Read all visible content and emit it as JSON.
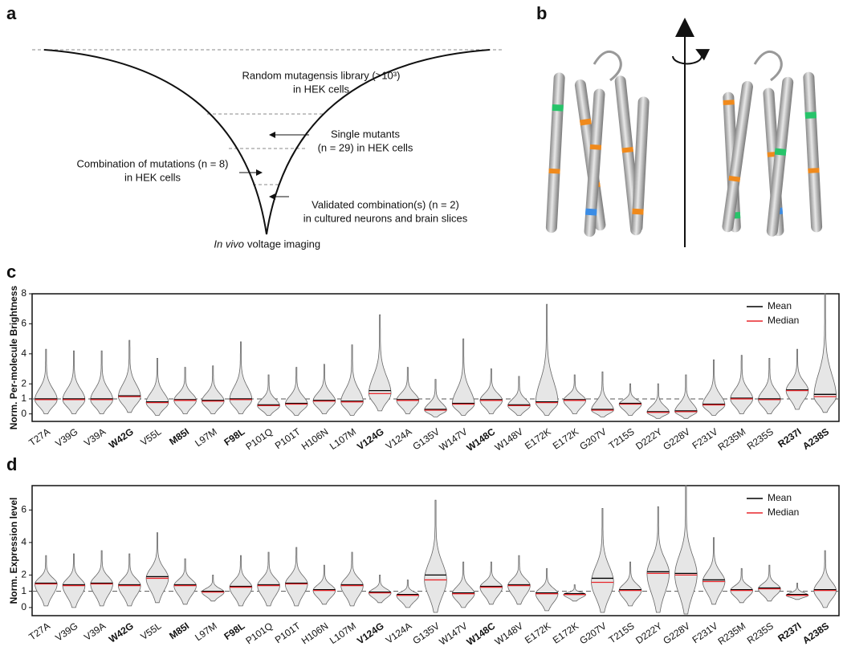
{
  "panel_labels": [
    "a",
    "b",
    "c",
    "d"
  ],
  "funnel": {
    "library": [
      "Random mutagensis library (>10³)",
      "in HEK cells"
    ],
    "single": [
      "Single mutants",
      "(n = 29) in HEK cells"
    ],
    "combination": [
      "Combination of mutations (n = 8)",
      "in HEK cells"
    ],
    "validated": [
      "Validated combination(s) (n = 2)",
      "in cultured neurons and brain slices"
    ],
    "in_vivo": [
      "In vivo",
      "voltage imaging"
    ]
  },
  "chart_data": [
    {
      "type": "violin",
      "ylabel": "Norm. Per-molecule Brightness",
      "categories": [
        "T27A",
        "V39G",
        "V39A",
        "W42G",
        "V55L",
        "M85I",
        "L97M",
        "F98L",
        "P101Q",
        "P101T",
        "H106N",
        "L107M",
        "V124G",
        "V124A",
        "G135V",
        "W147V",
        "W148C",
        "W148V",
        "E172K",
        "E172K",
        "G207V",
        "T215S",
        "D222Y",
        "G228V",
        "F231V",
        "R235M",
        "R235S",
        "R237I",
        "A238S"
      ],
      "bold": [
        false,
        false,
        false,
        true,
        false,
        true,
        false,
        true,
        false,
        false,
        false,
        false,
        true,
        false,
        false,
        false,
        true,
        false,
        false,
        false,
        false,
        false,
        false,
        false,
        false,
        false,
        false,
        true,
        true
      ],
      "series": [
        {
          "name": "Mean",
          "color": "#000000",
          "values": [
            1.0,
            1.0,
            1.0,
            1.2,
            0.8,
            0.95,
            0.9,
            1.0,
            0.6,
            0.7,
            0.9,
            0.85,
            1.55,
            0.95,
            0.3,
            0.7,
            0.95,
            0.6,
            0.8,
            0.95,
            0.3,
            0.7,
            0.15,
            0.2,
            0.65,
            1.05,
            1.0,
            1.6,
            1.3
          ]
        },
        {
          "name": "Median",
          "color": "#e8262b",
          "values": [
            0.95,
            0.95,
            0.95,
            1.15,
            0.75,
            0.9,
            0.85,
            0.95,
            0.55,
            0.65,
            0.85,
            0.8,
            1.35,
            0.9,
            0.25,
            0.65,
            0.9,
            0.55,
            0.75,
            0.9,
            0.25,
            0.65,
            0.1,
            0.15,
            0.6,
            1.0,
            0.95,
            1.55,
            1.15
          ]
        }
      ],
      "min": [
        0.0,
        0.0,
        0.0,
        0.1,
        -0.1,
        0.0,
        0.0,
        0.0,
        -0.1,
        -0.1,
        0.0,
        -0.1,
        0.2,
        0.0,
        -0.2,
        -0.1,
        0.0,
        -0.1,
        -0.1,
        0.0,
        -0.2,
        -0.1,
        -0.3,
        -0.3,
        -0.1,
        0.0,
        0.0,
        0.3,
        0.1
      ],
      "max": [
        4.3,
        4.2,
        4.2,
        4.9,
        3.7,
        3.1,
        3.2,
        4.8,
        2.6,
        3.1,
        3.3,
        4.6,
        6.6,
        3.1,
        2.3,
        5.0,
        3.0,
        2.5,
        7.3,
        2.6,
        2.8,
        2.0,
        2.0,
        2.6,
        3.6,
        3.9,
        3.7,
        4.3,
        8.0
      ],
      "fill": "#e6e6e6",
      "reference_line": 1,
      "legend": "upper right",
      "ylim": [
        -0.5,
        8
      ],
      "yticks": [
        0,
        1,
        2,
        4,
        6,
        8
      ]
    },
    {
      "type": "violin",
      "ylabel": "Norm. Expression level",
      "categories": [
        "T27A",
        "V39G",
        "V39A",
        "W42G",
        "V55L",
        "M85I",
        "L97M",
        "F98L",
        "P101Q",
        "P101T",
        "H106N",
        "L107M",
        "V124G",
        "V124A",
        "G135V",
        "W147V",
        "W148C",
        "W148V",
        "E172K",
        "E172K",
        "G207V",
        "T215S",
        "D222Y",
        "G228V",
        "F231V",
        "R235M",
        "R235S",
        "R237I",
        "A238S"
      ],
      "bold": [
        false,
        false,
        false,
        true,
        false,
        true,
        false,
        true,
        false,
        false,
        false,
        false,
        true,
        false,
        false,
        false,
        true,
        false,
        false,
        false,
        false,
        false,
        false,
        false,
        false,
        false,
        false,
        true,
        true
      ],
      "series": [
        {
          "name": "Mean",
          "color": "#000000",
          "values": [
            1.5,
            1.4,
            1.5,
            1.4,
            1.9,
            1.4,
            1.0,
            1.3,
            1.4,
            1.5,
            1.1,
            1.4,
            0.95,
            0.8,
            2.0,
            0.9,
            1.3,
            1.4,
            0.9,
            0.85,
            1.8,
            1.1,
            2.2,
            2.1,
            1.7,
            1.1,
            1.2,
            0.8,
            1.1
          ]
        },
        {
          "name": "Median",
          "color": "#e8262b",
          "values": [
            1.45,
            1.35,
            1.45,
            1.35,
            1.8,
            1.35,
            0.95,
            1.25,
            1.35,
            1.45,
            1.05,
            1.35,
            0.9,
            0.75,
            1.7,
            0.85,
            1.25,
            1.35,
            0.85,
            0.8,
            1.55,
            1.05,
            2.1,
            2.0,
            1.6,
            1.05,
            1.15,
            0.75,
            1.05
          ]
        }
      ],
      "min": [
        0.1,
        0.0,
        0.1,
        0.1,
        0.3,
        0.2,
        0.4,
        0.1,
        0.1,
        0.1,
        0.2,
        0.1,
        0.3,
        0.0,
        -0.3,
        0.0,
        0.2,
        0.2,
        -0.2,
        0.4,
        -0.3,
        0.1,
        -0.3,
        -0.4,
        0.2,
        0.3,
        0.4,
        0.5,
        0.0
      ],
      "max": [
        3.2,
        3.3,
        3.5,
        3.3,
        4.6,
        3.0,
        2.0,
        3.2,
        3.4,
        3.7,
        2.6,
        3.4,
        2.0,
        1.7,
        6.6,
        2.8,
        2.8,
        3.2,
        2.4,
        1.4,
        6.1,
        2.8,
        6.2,
        7.5,
        4.3,
        2.4,
        2.6,
        1.5,
        3.5
      ],
      "fill": "#e6e6e6",
      "reference_line": 1,
      "legend": "upper right",
      "ylim": [
        -0.5,
        7.5
      ],
      "yticks": [
        0,
        1,
        2,
        4,
        6
      ]
    }
  ]
}
